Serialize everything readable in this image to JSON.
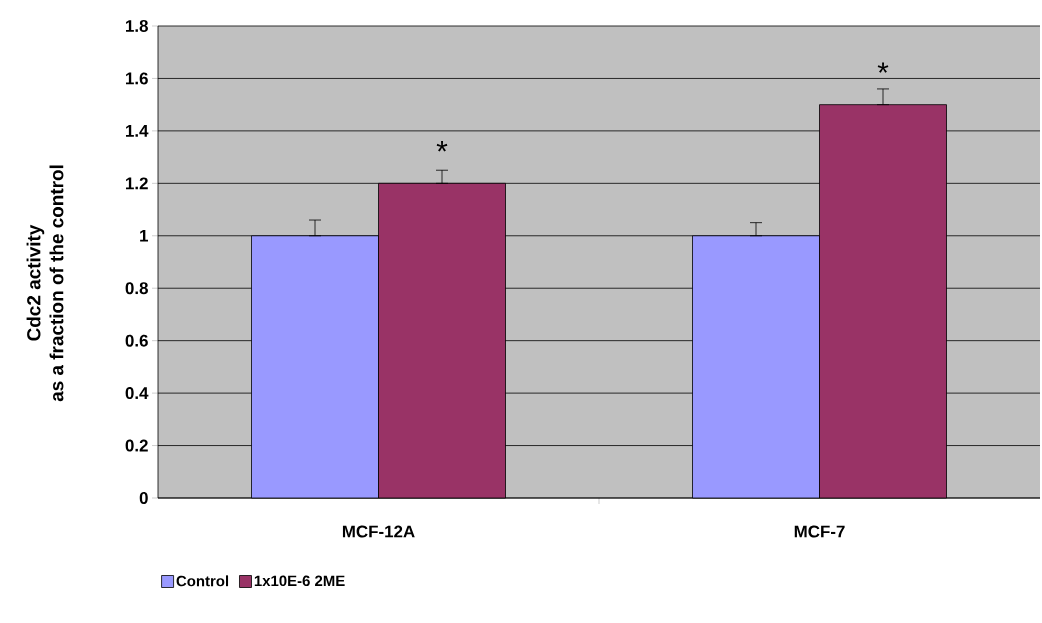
{
  "chart_data": {
    "type": "bar",
    "ylabel": "Cdc2 activity\nas a fraction of the control",
    "categories": [
      "MCF-12A",
      "MCF-7"
    ],
    "series": [
      {
        "name": "Control",
        "color": "#9999ff",
        "values": [
          1,
          1
        ],
        "errors": [
          [
            1,
            1.06
          ],
          [
            1,
            1.05
          ]
        ]
      },
      {
        "name": "1x10E-6 2ME",
        "color": "#993366",
        "values": [
          1.2,
          1.5
        ],
        "errors": [
          [
            1.2,
            1.25
          ],
          [
            1.5,
            1.56
          ]
        ]
      }
    ],
    "ylim": [
      0,
      1.8
    ],
    "yticks": [
      0,
      0.2,
      0.4,
      0.6,
      0.8,
      {
        "value": 1,
        "label": "1"
      },
      1.2,
      1.4,
      1.6,
      1.8
    ],
    "grid": "y",
    "legend": "bottom",
    "annotations": [
      {
        "text": "*",
        "x": "MCF-12A",
        "y": 1.2
      },
      {
        "text": "*",
        "x": "MCF-7",
        "y": 1.5
      }
    ]
  }
}
